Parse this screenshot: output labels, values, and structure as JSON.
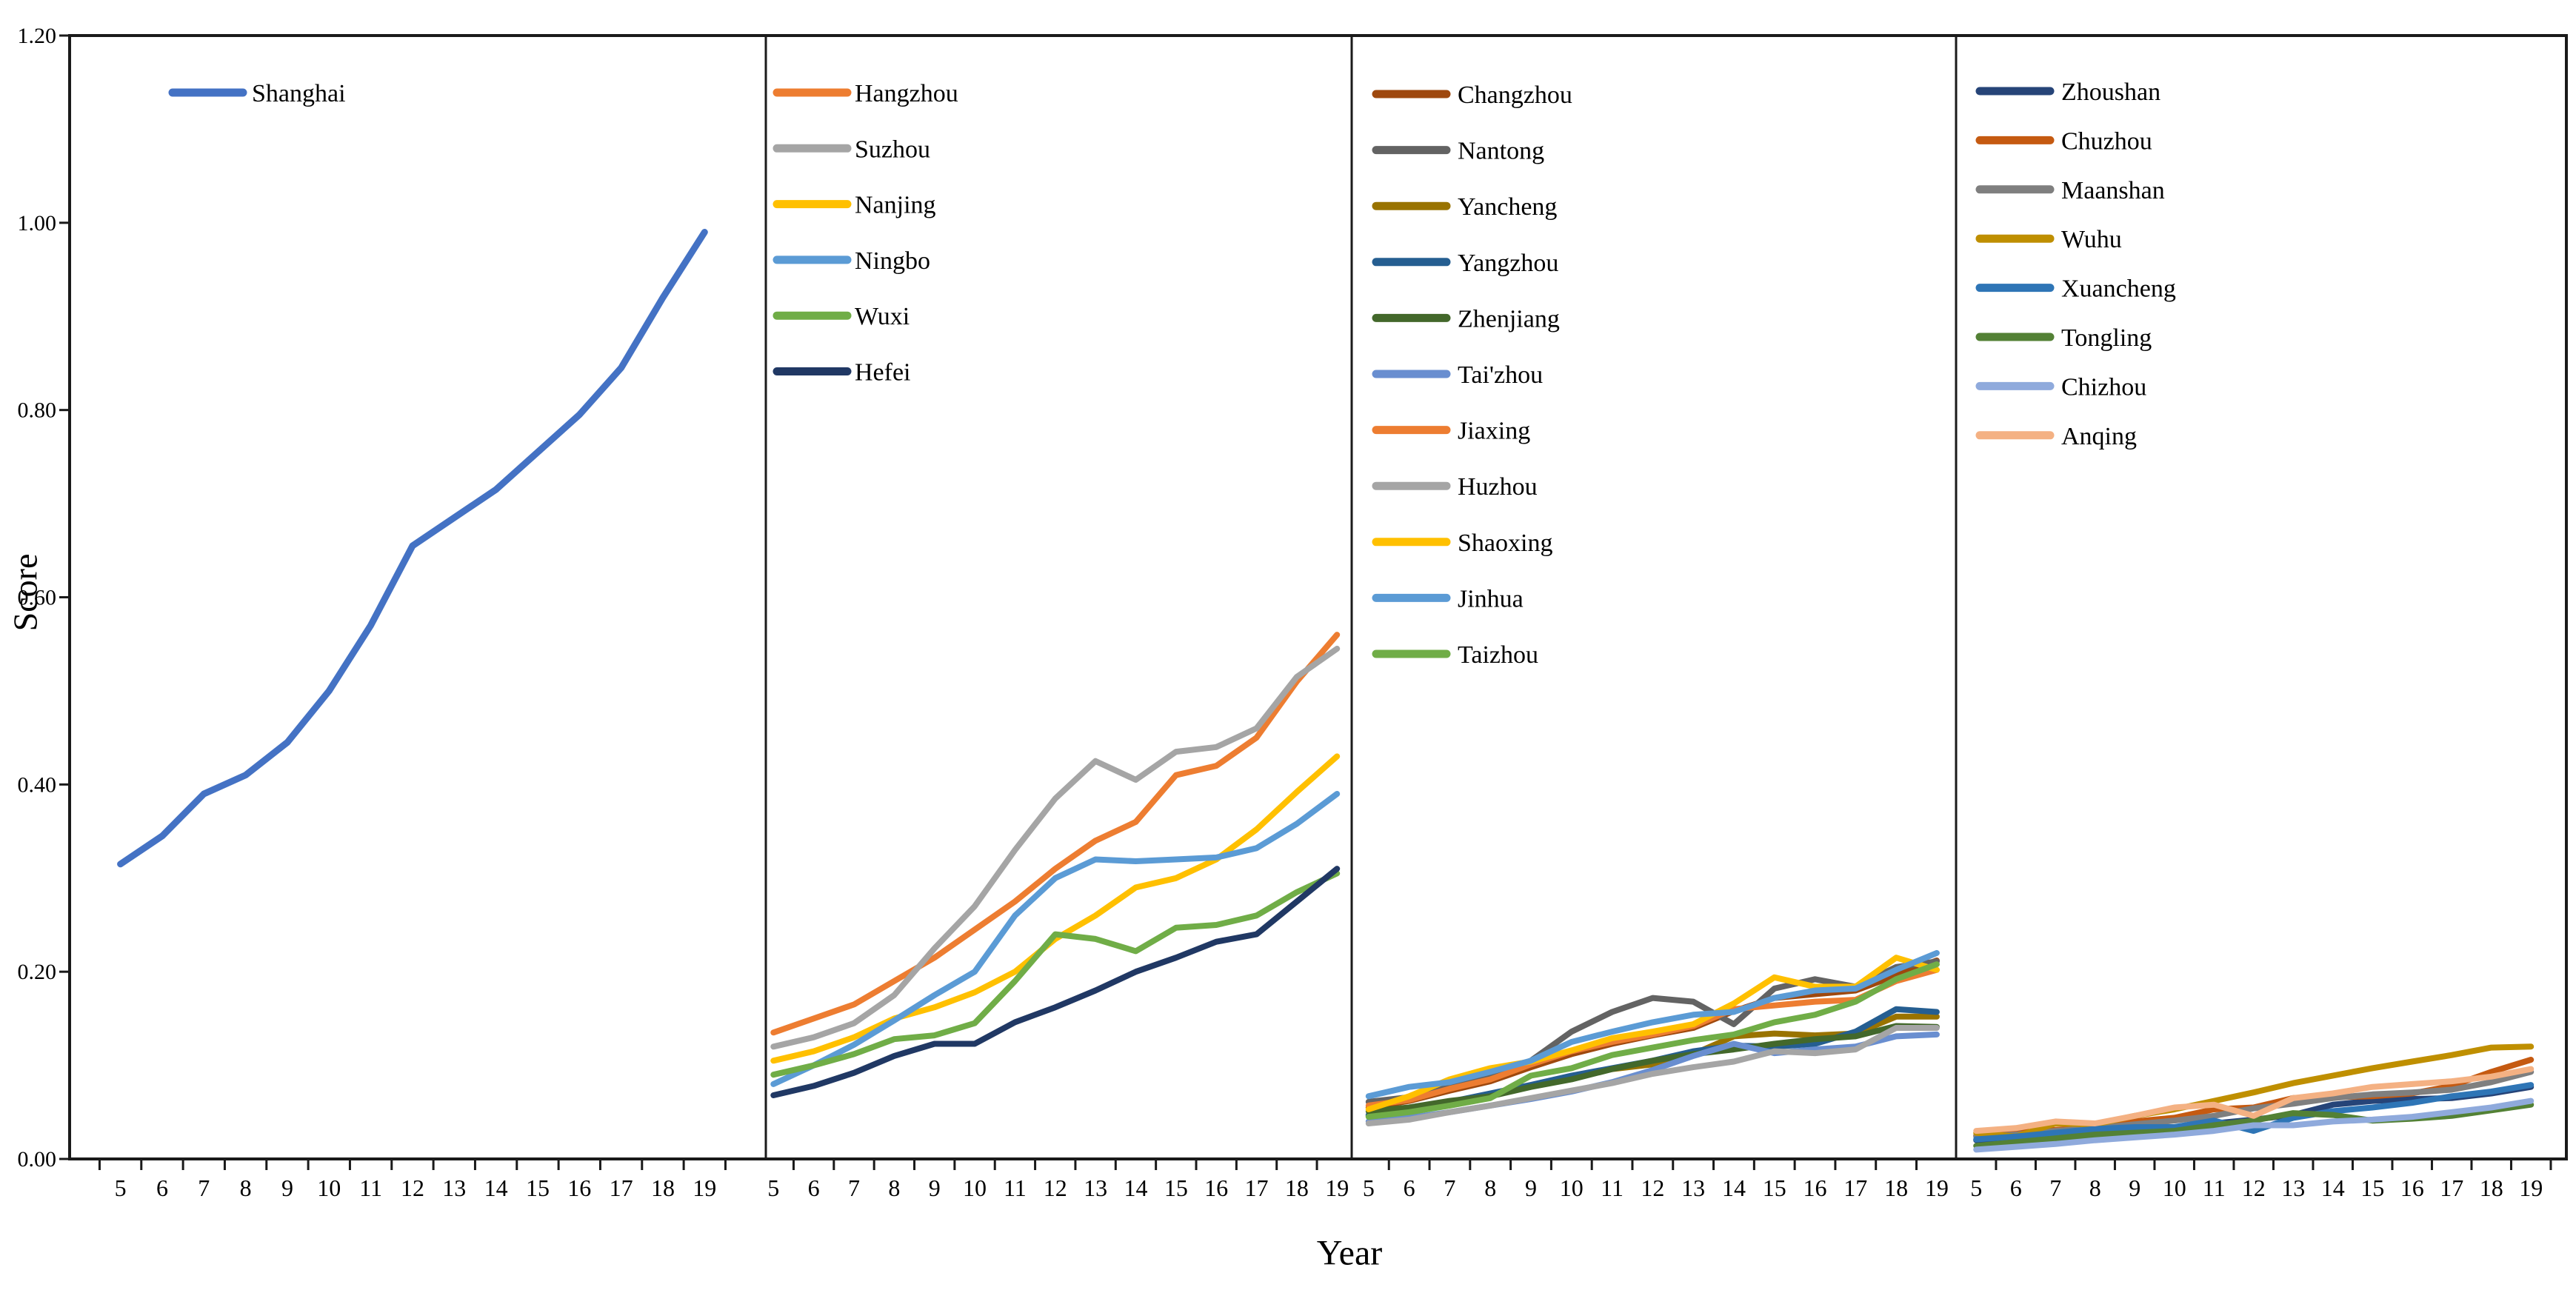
{
  "figure": {
    "ylabel": "Score",
    "xlabel": "Year",
    "background": "#ffffff",
    "axis_color": "#1a1a1a",
    "y_ticks": [
      "1.20",
      "1.00",
      "0.80",
      "0.60",
      "0.40",
      "0.20",
      "0.00"
    ],
    "x_tick_labels": [
      "5",
      "6",
      "7",
      "8",
      "9",
      "10",
      "11",
      "12",
      "13",
      "14",
      "15",
      "16",
      "17",
      "18",
      "19"
    ]
  },
  "chart_data": [
    {
      "type": "line",
      "panel": "panel-1",
      "x": [
        5,
        6,
        7,
        8,
        9,
        10,
        11,
        12,
        13,
        14,
        15,
        16,
        17,
        18,
        19
      ],
      "ylim": [
        0,
        1.2
      ],
      "grid": false,
      "legend_position": "top-left-inside",
      "series": [
        {
          "name": "Shanghai",
          "color": "#4472C4",
          "values": [
            0.315,
            0.345,
            0.39,
            0.41,
            0.445,
            0.5,
            0.57,
            0.655,
            0.685,
            0.715,
            0.755,
            0.795,
            0.845,
            0.92,
            0.99
          ]
        }
      ]
    },
    {
      "type": "line",
      "panel": "panel-2",
      "x": [
        5,
        6,
        7,
        8,
        9,
        10,
        11,
        12,
        13,
        14,
        15,
        16,
        17,
        18,
        19
      ],
      "ylim": [
        0,
        1.2
      ],
      "grid": false,
      "legend_position": "top-left-inside",
      "series": [
        {
          "name": "Hangzhou",
          "color": "#ED7D31",
          "values": [
            0.135,
            0.15,
            0.165,
            0.19,
            0.215,
            0.245,
            0.275,
            0.31,
            0.34,
            0.36,
            0.41,
            0.42,
            0.45,
            0.51,
            0.56
          ]
        },
        {
          "name": "Suzhou",
          "color": "#A5A5A5",
          "values": [
            0.12,
            0.13,
            0.145,
            0.175,
            0.225,
            0.27,
            0.33,
            0.385,
            0.425,
            0.405,
            0.435,
            0.44,
            0.46,
            0.515,
            0.545
          ]
        },
        {
          "name": "Nanjing",
          "color": "#FFC000",
          "values": [
            0.105,
            0.115,
            0.13,
            0.15,
            0.162,
            0.178,
            0.2,
            0.235,
            0.26,
            0.29,
            0.3,
            0.32,
            0.352,
            0.392,
            0.43
          ]
        },
        {
          "name": "Ningbo",
          "color": "#5B9BD5",
          "values": [
            0.08,
            0.1,
            0.122,
            0.148,
            0.175,
            0.2,
            0.26,
            0.3,
            0.32,
            0.318,
            0.32,
            0.322,
            0.332,
            0.358,
            0.39
          ]
        },
        {
          "name": "Wuxi",
          "color": "#70AD47",
          "values": [
            0.09,
            0.1,
            0.112,
            0.128,
            0.132,
            0.145,
            0.19,
            0.24,
            0.235,
            0.222,
            0.247,
            0.25,
            0.26,
            0.285,
            0.305
          ]
        },
        {
          "name": "Hefei",
          "color": "#203864",
          "values": [
            0.068,
            0.078,
            0.092,
            0.11,
            0.123,
            0.123,
            0.146,
            0.162,
            0.18,
            0.2,
            0.215,
            0.232,
            0.24,
            0.275,
            0.31
          ]
        }
      ]
    },
    {
      "type": "line",
      "panel": "panel-3",
      "x": [
        5,
        6,
        7,
        8,
        9,
        10,
        11,
        12,
        13,
        14,
        15,
        16,
        17,
        18,
        19
      ],
      "ylim": [
        0,
        1.2
      ],
      "grid": false,
      "legend_position": "top-left-inside",
      "series": [
        {
          "name": "Changzhou",
          "color": "#9E480E",
          "values": [
            0.055,
            0.062,
            0.073,
            0.083,
            0.098,
            0.112,
            0.123,
            0.132,
            0.14,
            0.158,
            0.172,
            0.176,
            0.18,
            0.196,
            0.212
          ]
        },
        {
          "name": "Nantong",
          "color": "#636363",
          "values": [
            0.061,
            0.066,
            0.077,
            0.089,
            0.105,
            0.136,
            0.157,
            0.172,
            0.168,
            0.144,
            0.182,
            0.192,
            0.184,
            0.205,
            0.211
          ]
        },
        {
          "name": "Yancheng",
          "color": "#997300",
          "values": [
            0.046,
            0.052,
            0.06,
            0.068,
            0.078,
            0.088,
            0.096,
            0.101,
            0.112,
            0.131,
            0.134,
            0.132,
            0.134,
            0.152,
            0.152
          ]
        },
        {
          "name": "Yangzhou",
          "color": "#255E91",
          "values": [
            0.047,
            0.054,
            0.061,
            0.07,
            0.079,
            0.089,
            0.097,
            0.105,
            0.115,
            0.121,
            0.12,
            0.123,
            0.136,
            0.16,
            0.157
          ]
        },
        {
          "name": "Zhenjiang",
          "color": "#43682B",
          "values": [
            0.051,
            0.055,
            0.062,
            0.067,
            0.077,
            0.085,
            0.096,
            0.105,
            0.112,
            0.117,
            0.123,
            0.128,
            0.131,
            0.142,
            0.141
          ]
        },
        {
          "name": "Tai'zhou",
          "color": "#698ED0",
          "values": [
            0.04,
            0.044,
            0.05,
            0.057,
            0.064,
            0.072,
            0.082,
            0.095,
            0.11,
            0.123,
            0.113,
            0.117,
            0.12,
            0.131,
            0.133
          ]
        },
        {
          "name": "Jiaxing",
          "color": "#ED7D31",
          "values": [
            0.057,
            0.063,
            0.075,
            0.085,
            0.101,
            0.115,
            0.125,
            0.133,
            0.142,
            0.16,
            0.164,
            0.168,
            0.17,
            0.19,
            0.202
          ]
        },
        {
          "name": "Huzhou",
          "color": "#A5A5A5",
          "values": [
            0.038,
            0.042,
            0.05,
            0.057,
            0.065,
            0.073,
            0.081,
            0.091,
            0.098,
            0.104,
            0.115,
            0.113,
            0.117,
            0.14,
            0.14
          ]
        },
        {
          "name": "Shaoxing",
          "color": "#FFC000",
          "values": [
            0.053,
            0.067,
            0.085,
            0.097,
            0.104,
            0.116,
            0.129,
            0.136,
            0.144,
            0.166,
            0.194,
            0.184,
            0.184,
            0.215,
            0.202
          ]
        },
        {
          "name": "Jinhua",
          "color": "#5B9BD5",
          "values": [
            0.067,
            0.077,
            0.082,
            0.093,
            0.105,
            0.125,
            0.136,
            0.146,
            0.154,
            0.157,
            0.172,
            0.18,
            0.182,
            0.202,
            0.22
          ]
        },
        {
          "name": "Taizhou",
          "color": "#70AD47",
          "values": [
            0.045,
            0.05,
            0.057,
            0.065,
            0.089,
            0.097,
            0.111,
            0.119,
            0.127,
            0.133,
            0.146,
            0.154,
            0.168,
            0.192,
            0.208
          ]
        }
      ]
    },
    {
      "type": "line",
      "panel": "panel-4",
      "x": [
        5,
        6,
        7,
        8,
        9,
        10,
        11,
        12,
        13,
        14,
        15,
        16,
        17,
        18,
        19
      ],
      "ylim": [
        0,
        1.2
      ],
      "grid": false,
      "legend_position": "top-left-inside",
      "series": [
        {
          "name": "Zhoushan",
          "color": "#264478",
          "values": [
            0.02,
            0.024,
            0.028,
            0.03,
            0.032,
            0.032,
            0.038,
            0.042,
            0.047,
            0.058,
            0.062,
            0.064,
            0.065,
            0.07,
            0.077
          ]
        },
        {
          "name": "Chuzhou",
          "color": "#C55A11",
          "values": [
            0.025,
            0.028,
            0.031,
            0.034,
            0.04,
            0.044,
            0.053,
            0.055,
            0.065,
            0.066,
            0.067,
            0.07,
            0.078,
            0.093,
            0.106
          ]
        },
        {
          "name": "Maanshan",
          "color": "#7F7F7F",
          "values": [
            0.024,
            0.026,
            0.03,
            0.033,
            0.037,
            0.041,
            0.046,
            0.054,
            0.059,
            0.065,
            0.069,
            0.071,
            0.074,
            0.082,
            0.093
          ]
        },
        {
          "name": "Wuhu",
          "color": "#BF8F00",
          "values": [
            0.028,
            0.024,
            0.038,
            0.037,
            0.046,
            0.053,
            0.062,
            0.071,
            0.081,
            0.089,
            0.097,
            0.104,
            0.111,
            0.119,
            0.12
          ]
        },
        {
          "name": "Xuancheng",
          "color": "#2E75B6",
          "values": [
            0.021,
            0.024,
            0.028,
            0.032,
            0.034,
            0.034,
            0.041,
            0.03,
            0.044,
            0.051,
            0.055,
            0.06,
            0.067,
            0.072,
            0.079
          ]
        },
        {
          "name": "Tongling",
          "color": "#538135",
          "values": [
            0.014,
            0.018,
            0.022,
            0.026,
            0.028,
            0.03,
            0.036,
            0.041,
            0.049,
            0.047,
            0.041,
            0.043,
            0.046,
            0.052,
            0.058
          ]
        },
        {
          "name": "Chizhou",
          "color": "#8FAADC",
          "values": [
            0.01,
            0.013,
            0.016,
            0.02,
            0.023,
            0.026,
            0.03,
            0.036,
            0.036,
            0.04,
            0.042,
            0.045,
            0.05,
            0.055,
            0.062
          ]
        },
        {
          "name": "Anqing",
          "color": "#F4B183",
          "values": [
            0.03,
            0.033,
            0.04,
            0.038,
            0.046,
            0.055,
            0.058,
            0.046,
            0.065,
            0.07,
            0.077,
            0.08,
            0.083,
            0.088,
            0.096
          ]
        }
      ]
    }
  ]
}
